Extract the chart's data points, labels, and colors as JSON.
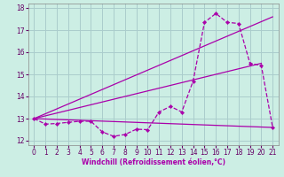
{
  "background_color": "#cceee4",
  "grid_color": "#aacccc",
  "line_color": "#aa00aa",
  "xlabel": "Windchill (Refroidissement éolien,°C)",
  "ylim": [
    11.8,
    18.2
  ],
  "xlim": [
    -0.5,
    21.5
  ],
  "yticks": [
    12,
    13,
    14,
    15,
    16,
    17,
    18
  ],
  "xticks": [
    0,
    1,
    2,
    3,
    4,
    5,
    6,
    7,
    8,
    9,
    10,
    11,
    12,
    13,
    14,
    15,
    16,
    17,
    18,
    19,
    20,
    21
  ],
  "line1_x": [
    0,
    21
  ],
  "line1_y": [
    13.0,
    12.6
  ],
  "line2_x": [
    0,
    21
  ],
  "line2_y": [
    13.0,
    17.6
  ],
  "line3_x": [
    0,
    20
  ],
  "line3_y": [
    13.0,
    15.5
  ],
  "data_x": [
    0,
    1,
    2,
    3,
    4,
    5,
    6,
    7,
    8,
    9,
    10,
    11,
    12,
    13,
    14,
    15,
    16,
    17,
    18,
    19,
    20,
    21
  ],
  "data_y": [
    13.0,
    12.75,
    12.78,
    12.83,
    12.88,
    12.88,
    12.4,
    12.2,
    12.28,
    12.52,
    12.5,
    13.3,
    13.55,
    13.3,
    14.7,
    17.35,
    17.75,
    17.35,
    17.3,
    15.5,
    15.4,
    12.6
  ]
}
